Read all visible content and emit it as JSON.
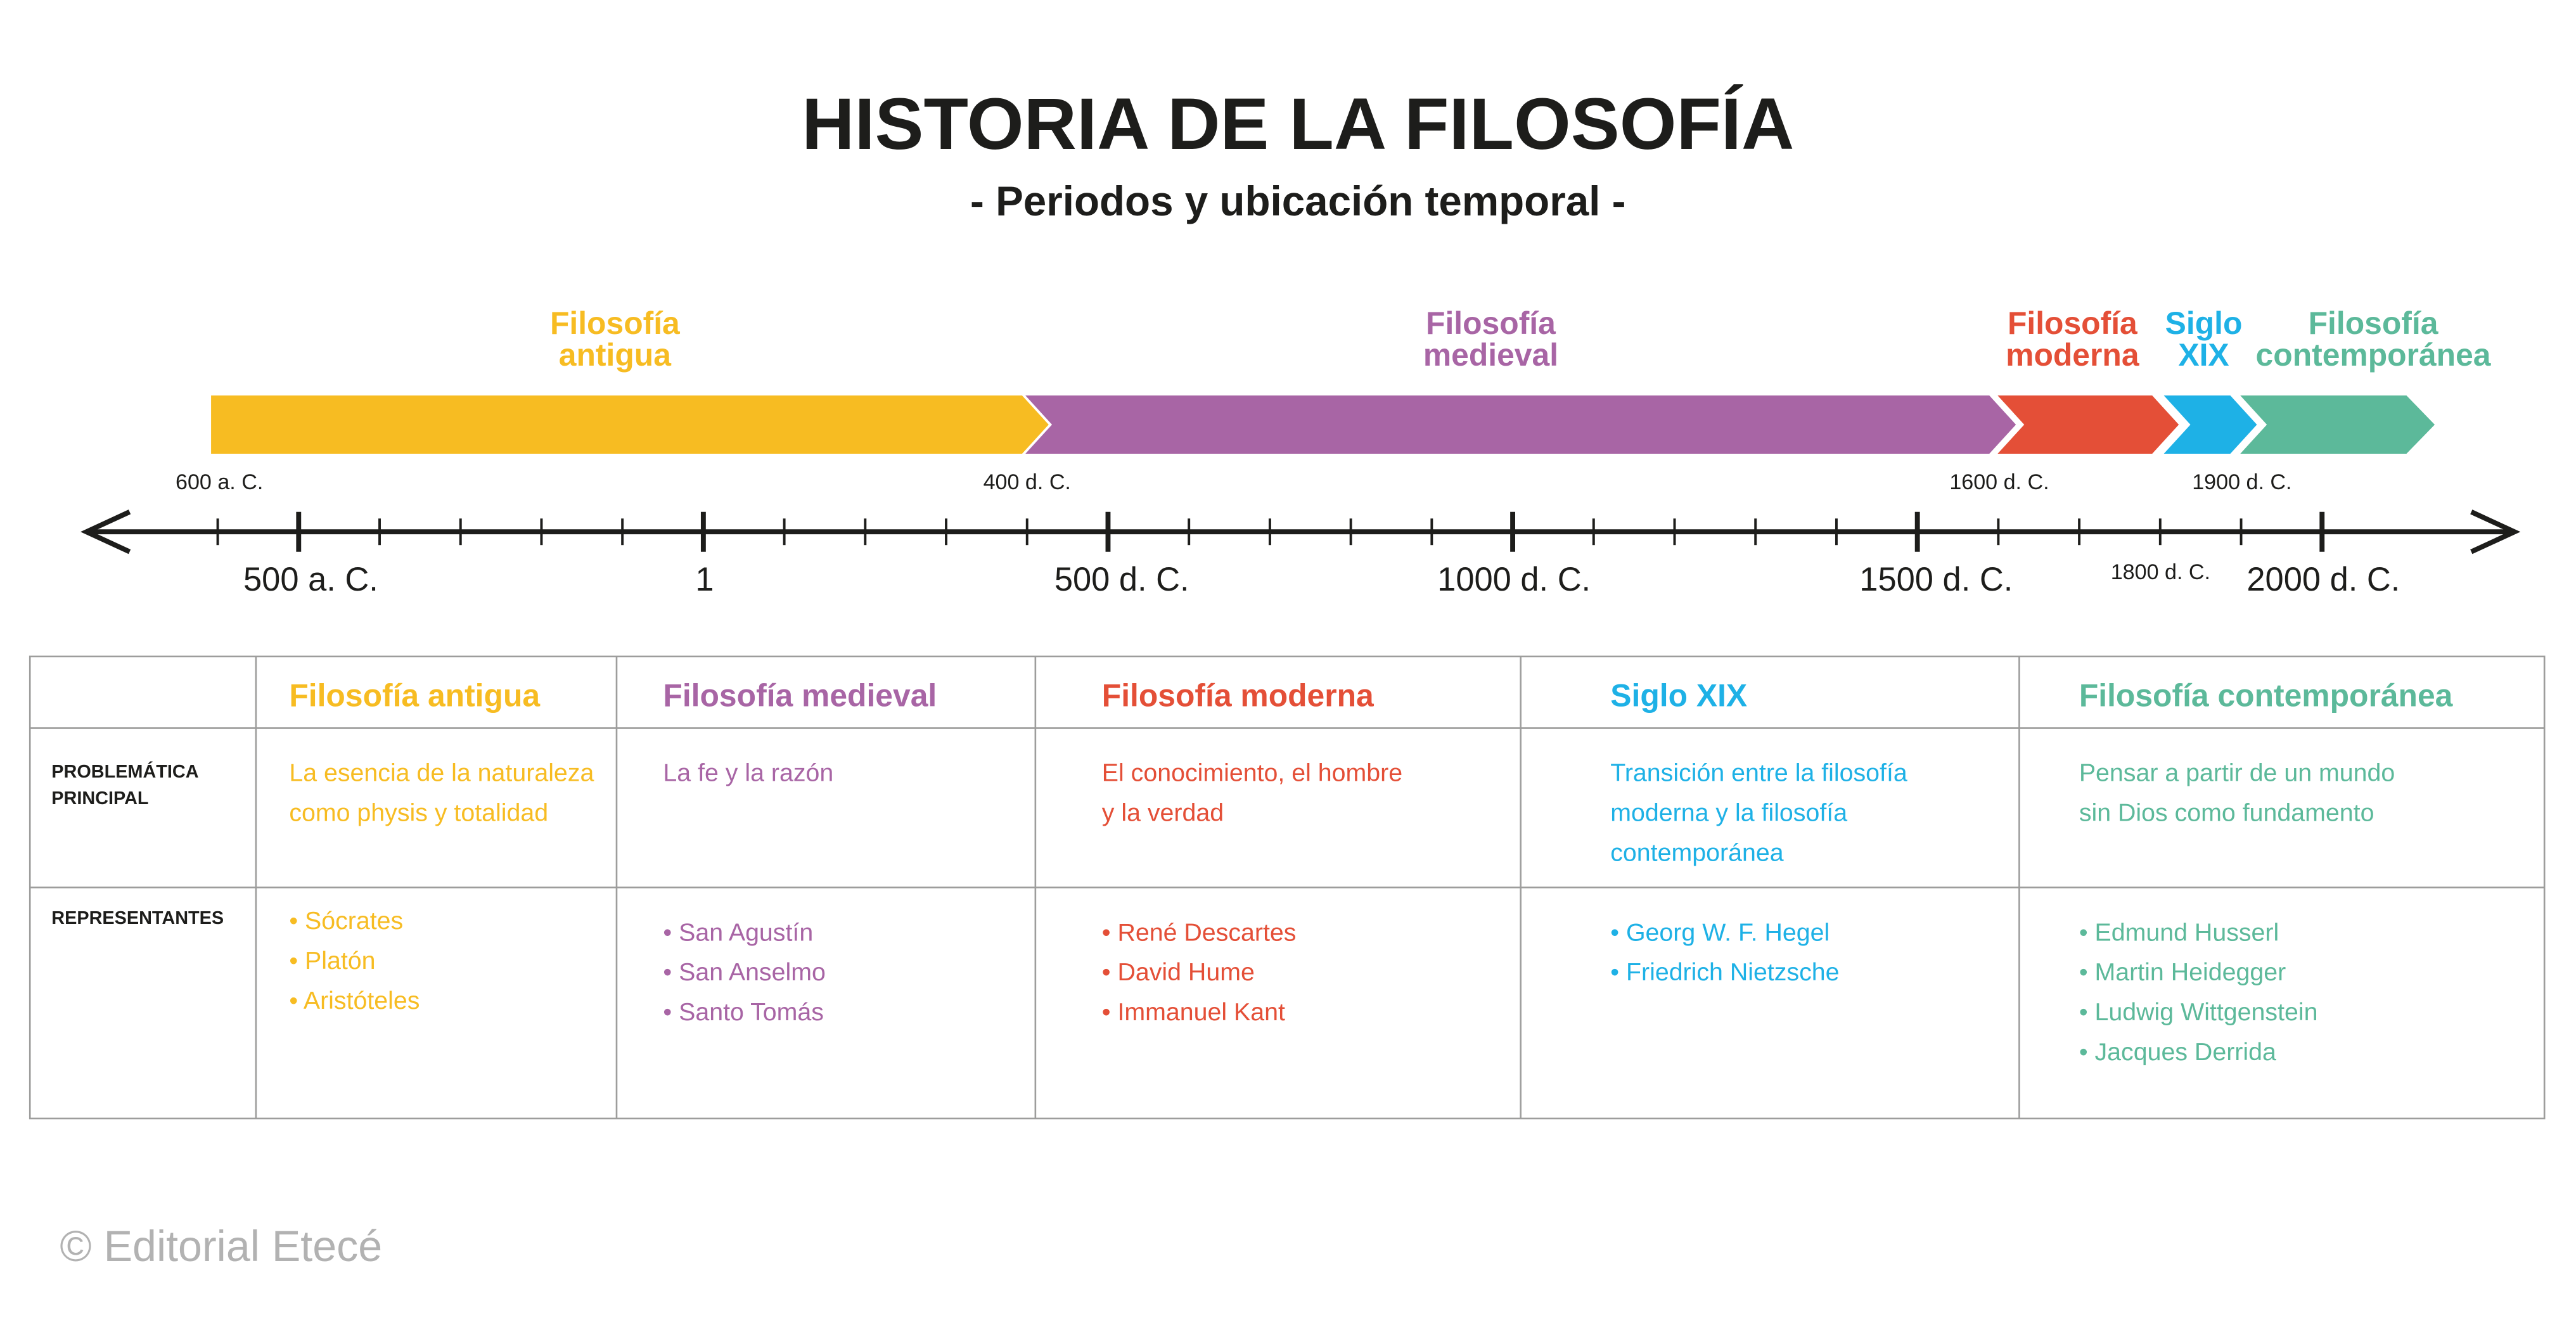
{
  "header": {
    "title": "HISTORIA DE LA FILOSOFÍA",
    "subtitle": "- Periodos y ubicación temporal -"
  },
  "timeline": {
    "periods": [
      {
        "label": [
          "Filosofía",
          "antigua"
        ]
      },
      {
        "label": [
          "Filosofía",
          "medieval"
        ]
      },
      {
        "label": [
          "Filosofía",
          "moderna"
        ]
      },
      {
        "label": [
          "Siglo",
          "XIX"
        ]
      },
      {
        "label": [
          "Filosofía",
          "contemporánea"
        ]
      }
    ],
    "start_labels": [
      "600 a. C.",
      "400 d. C.",
      "1600 d. C.",
      "1900 d. C."
    ],
    "axis_labels": [
      "500 a. C.",
      "1",
      "500 d. C.",
      "1000 d. C.",
      "1500 d. C.",
      "2000 d. C."
    ],
    "minor_label": "1800 d. C."
  },
  "table": {
    "row_headers": [
      [
        "PROBLEMÁTICA",
        "PRINCIPAL"
      ],
      [
        "REPRESENTANTES"
      ]
    ],
    "columns": [
      {
        "title": "Filosofía antigua",
        "problem": [
          "La esencia de la naturaleza",
          "como physis y totalidad"
        ],
        "representatives": [
          "• Sócrates",
          "• Platón",
          "• Aristóteles"
        ]
      },
      {
        "title": "Filosofía medieval",
        "problem": [
          "La fe y la razón"
        ],
        "representatives": [
          "• San Agustín",
          "• San Anselmo",
          "• Santo Tomás"
        ]
      },
      {
        "title": "Filosofía moderna",
        "problem": [
          "El conocimiento, el hombre",
          "y la verdad"
        ],
        "representatives": [
          "• René Descartes",
          "• David Hume",
          "• Immanuel Kant"
        ]
      },
      {
        "title": "Siglo XIX",
        "problem": [
          "Transición entre la filosofía",
          "moderna y la filosofía",
          "contemporánea"
        ],
        "representatives": [
          "• Georg W. F. Hegel",
          "• Friedrich Nietzsche"
        ]
      },
      {
        "title": "Filosofía contemporánea",
        "problem": [
          "Pensar a partir de un mundo",
          "sin Dios como fundamento"
        ],
        "representatives": [
          "• Edmund Husserl",
          "• Martin Heidegger",
          "• Ludwig Wittgenstein",
          "• Jacques Derrida"
        ]
      }
    ]
  },
  "footer": {
    "credit": "© Editorial Etecé"
  }
}
